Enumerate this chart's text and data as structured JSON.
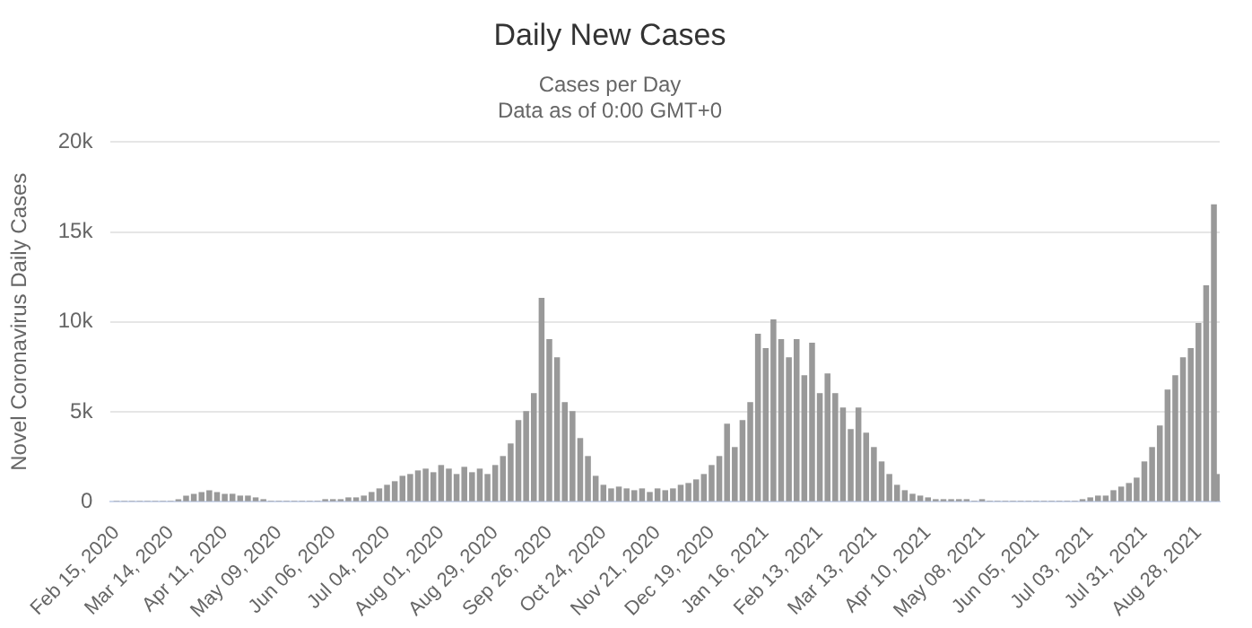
{
  "chart_data": {
    "type": "bar",
    "title": "Daily New Cases",
    "subtitle": "Cases per Day\nData as of 0:00 GMT+0",
    "ylabel": "Novel Coronavirus Daily Cases",
    "x": [
      "2020-02-15",
      "2020-02-19",
      "2020-02-23",
      "2020-02-27",
      "2020-03-02",
      "2020-03-06",
      "2020-03-10",
      "2020-03-14",
      "2020-03-18",
      "2020-03-22",
      "2020-03-26",
      "2020-03-30",
      "2020-04-03",
      "2020-04-07",
      "2020-04-11",
      "2020-04-15",
      "2020-04-19",
      "2020-04-23",
      "2020-04-27",
      "2020-05-01",
      "2020-05-05",
      "2020-05-09",
      "2020-05-13",
      "2020-05-17",
      "2020-05-21",
      "2020-05-25",
      "2020-05-29",
      "2020-06-02",
      "2020-06-06",
      "2020-06-10",
      "2020-06-14",
      "2020-06-18",
      "2020-06-22",
      "2020-06-26",
      "2020-06-30",
      "2020-07-04",
      "2020-07-08",
      "2020-07-12",
      "2020-07-16",
      "2020-07-20",
      "2020-07-24",
      "2020-07-28",
      "2020-08-01",
      "2020-08-05",
      "2020-08-09",
      "2020-08-13",
      "2020-08-17",
      "2020-08-21",
      "2020-08-25",
      "2020-08-29",
      "2020-09-02",
      "2020-09-06",
      "2020-09-10",
      "2020-09-14",
      "2020-09-18",
      "2020-09-22",
      "2020-09-26",
      "2020-09-30",
      "2020-10-04",
      "2020-10-08",
      "2020-10-12",
      "2020-10-16",
      "2020-10-20",
      "2020-10-24",
      "2020-10-28",
      "2020-11-01",
      "2020-11-05",
      "2020-11-09",
      "2020-11-13",
      "2020-11-17",
      "2020-11-21",
      "2020-11-25",
      "2020-11-29",
      "2020-12-03",
      "2020-12-07",
      "2020-12-11",
      "2020-12-15",
      "2020-12-19",
      "2020-12-23",
      "2020-12-27",
      "2020-12-31",
      "2021-01-04",
      "2021-01-08",
      "2021-01-12",
      "2021-01-16",
      "2021-01-20",
      "2021-01-24",
      "2021-01-28",
      "2021-02-01",
      "2021-02-05",
      "2021-02-09",
      "2021-02-13",
      "2021-02-17",
      "2021-02-21",
      "2021-02-25",
      "2021-03-01",
      "2021-03-05",
      "2021-03-09",
      "2021-03-13",
      "2021-03-17",
      "2021-03-21",
      "2021-03-25",
      "2021-03-29",
      "2021-04-02",
      "2021-04-06",
      "2021-04-10",
      "2021-04-14",
      "2021-04-18",
      "2021-04-22",
      "2021-04-26",
      "2021-04-30",
      "2021-05-04",
      "2021-05-08",
      "2021-05-12",
      "2021-05-16",
      "2021-05-20",
      "2021-05-24",
      "2021-05-28",
      "2021-06-01",
      "2021-06-05",
      "2021-06-09",
      "2021-06-13",
      "2021-06-17",
      "2021-06-21",
      "2021-06-25",
      "2021-06-29",
      "2021-07-03",
      "2021-07-07",
      "2021-07-11",
      "2021-07-15",
      "2021-07-19",
      "2021-07-23",
      "2021-07-27",
      "2021-07-31",
      "2021-08-04",
      "2021-08-08",
      "2021-08-12",
      "2021-08-16",
      "2021-08-20",
      "2021-08-24",
      "2021-08-28",
      "2021-09-01",
      "2021-09-05",
      "2021-09-07"
    ],
    "values": [
      0,
      0,
      0,
      0,
      0,
      0,
      0,
      0,
      100,
      300,
      400,
      500,
      600,
      500,
      400,
      400,
      300,
      300,
      200,
      100,
      0,
      0,
      0,
      0,
      0,
      0,
      0,
      100,
      100,
      100,
      200,
      200,
      300,
      500,
      700,
      900,
      1100,
      1400,
      1500,
      1700,
      1800,
      1600,
      2000,
      1800,
      1500,
      1900,
      1600,
      1800,
      1500,
      2000,
      2500,
      3200,
      4500,
      5000,
      6000,
      11300,
      9000,
      8000,
      5500,
      5000,
      3500,
      2500,
      1400,
      900,
      700,
      800,
      700,
      600,
      700,
      500,
      700,
      600,
      700,
      900,
      1000,
      1200,
      1500,
      2000,
      2500,
      4300,
      3000,
      4500,
      5500,
      9300,
      8500,
      10100,
      9000,
      8000,
      9000,
      7000,
      8800,
      6000,
      7100,
      6000,
      5200,
      4000,
      5200,
      3800,
      3000,
      2200,
      1500,
      900,
      600,
      400,
      300,
      200,
      100,
      100,
      100,
      100,
      100,
      0,
      100,
      0,
      0,
      0,
      0,
      0,
      0,
      0,
      0,
      0,
      0,
      0,
      0,
      100,
      200,
      300,
      300,
      600,
      800,
      1000,
      1300,
      2200,
      3000,
      4200,
      6200,
      7000,
      8000,
      8500,
      9900,
      12000,
      16500,
      1500
    ],
    "color": "#999999",
    "xlim": [
      "2020-02-12",
      "2021-09-08"
    ],
    "xticks": [
      {
        "value": "2020-02-15",
        "label": "Feb 15, 2020"
      },
      {
        "value": "2020-03-14",
        "label": "Mar 14, 2020"
      },
      {
        "value": "2020-04-11",
        "label": "Apr 11, 2020"
      },
      {
        "value": "2020-05-09",
        "label": "May 09, 2020"
      },
      {
        "value": "2020-06-06",
        "label": "Jun 06, 2020"
      },
      {
        "value": "2020-07-04",
        "label": "Jul 04, 2020"
      },
      {
        "value": "2020-08-01",
        "label": "Aug 01, 2020"
      },
      {
        "value": "2020-08-29",
        "label": "Aug 29, 2020"
      },
      {
        "value": "2020-09-26",
        "label": "Sep 26, 2020"
      },
      {
        "value": "2020-10-24",
        "label": "Oct 24, 2020"
      },
      {
        "value": "2020-11-21",
        "label": "Nov 21, 2020"
      },
      {
        "value": "2020-12-19",
        "label": "Dec 19, 2020"
      },
      {
        "value": "2021-01-16",
        "label": "Jan 16, 2021"
      },
      {
        "value": "2021-02-13",
        "label": "Feb 13, 2021"
      },
      {
        "value": "2021-03-13",
        "label": "Mar 13, 2021"
      },
      {
        "value": "2021-04-10",
        "label": "Apr 10, 2021"
      },
      {
        "value": "2021-05-08",
        "label": "May 08, 2021"
      },
      {
        "value": "2021-06-05",
        "label": "Jun 05, 2021"
      },
      {
        "value": "2021-07-03",
        "label": "Jul 03, 2021"
      },
      {
        "value": "2021-07-31",
        "label": "Jul 31, 2021"
      },
      {
        "value": "2021-08-28",
        "label": "Aug 28, 2021"
      }
    ],
    "ylim": [
      0,
      20000
    ],
    "yticks": [
      0,
      {
        "value": 5000,
        "label": "5k"
      },
      {
        "value": 10000,
        "label": "10k"
      },
      {
        "value": 15000,
        "label": "15k"
      },
      {
        "value": 20000,
        "label": "20k"
      }
    ],
    "grid": "y",
    "legend": false
  }
}
